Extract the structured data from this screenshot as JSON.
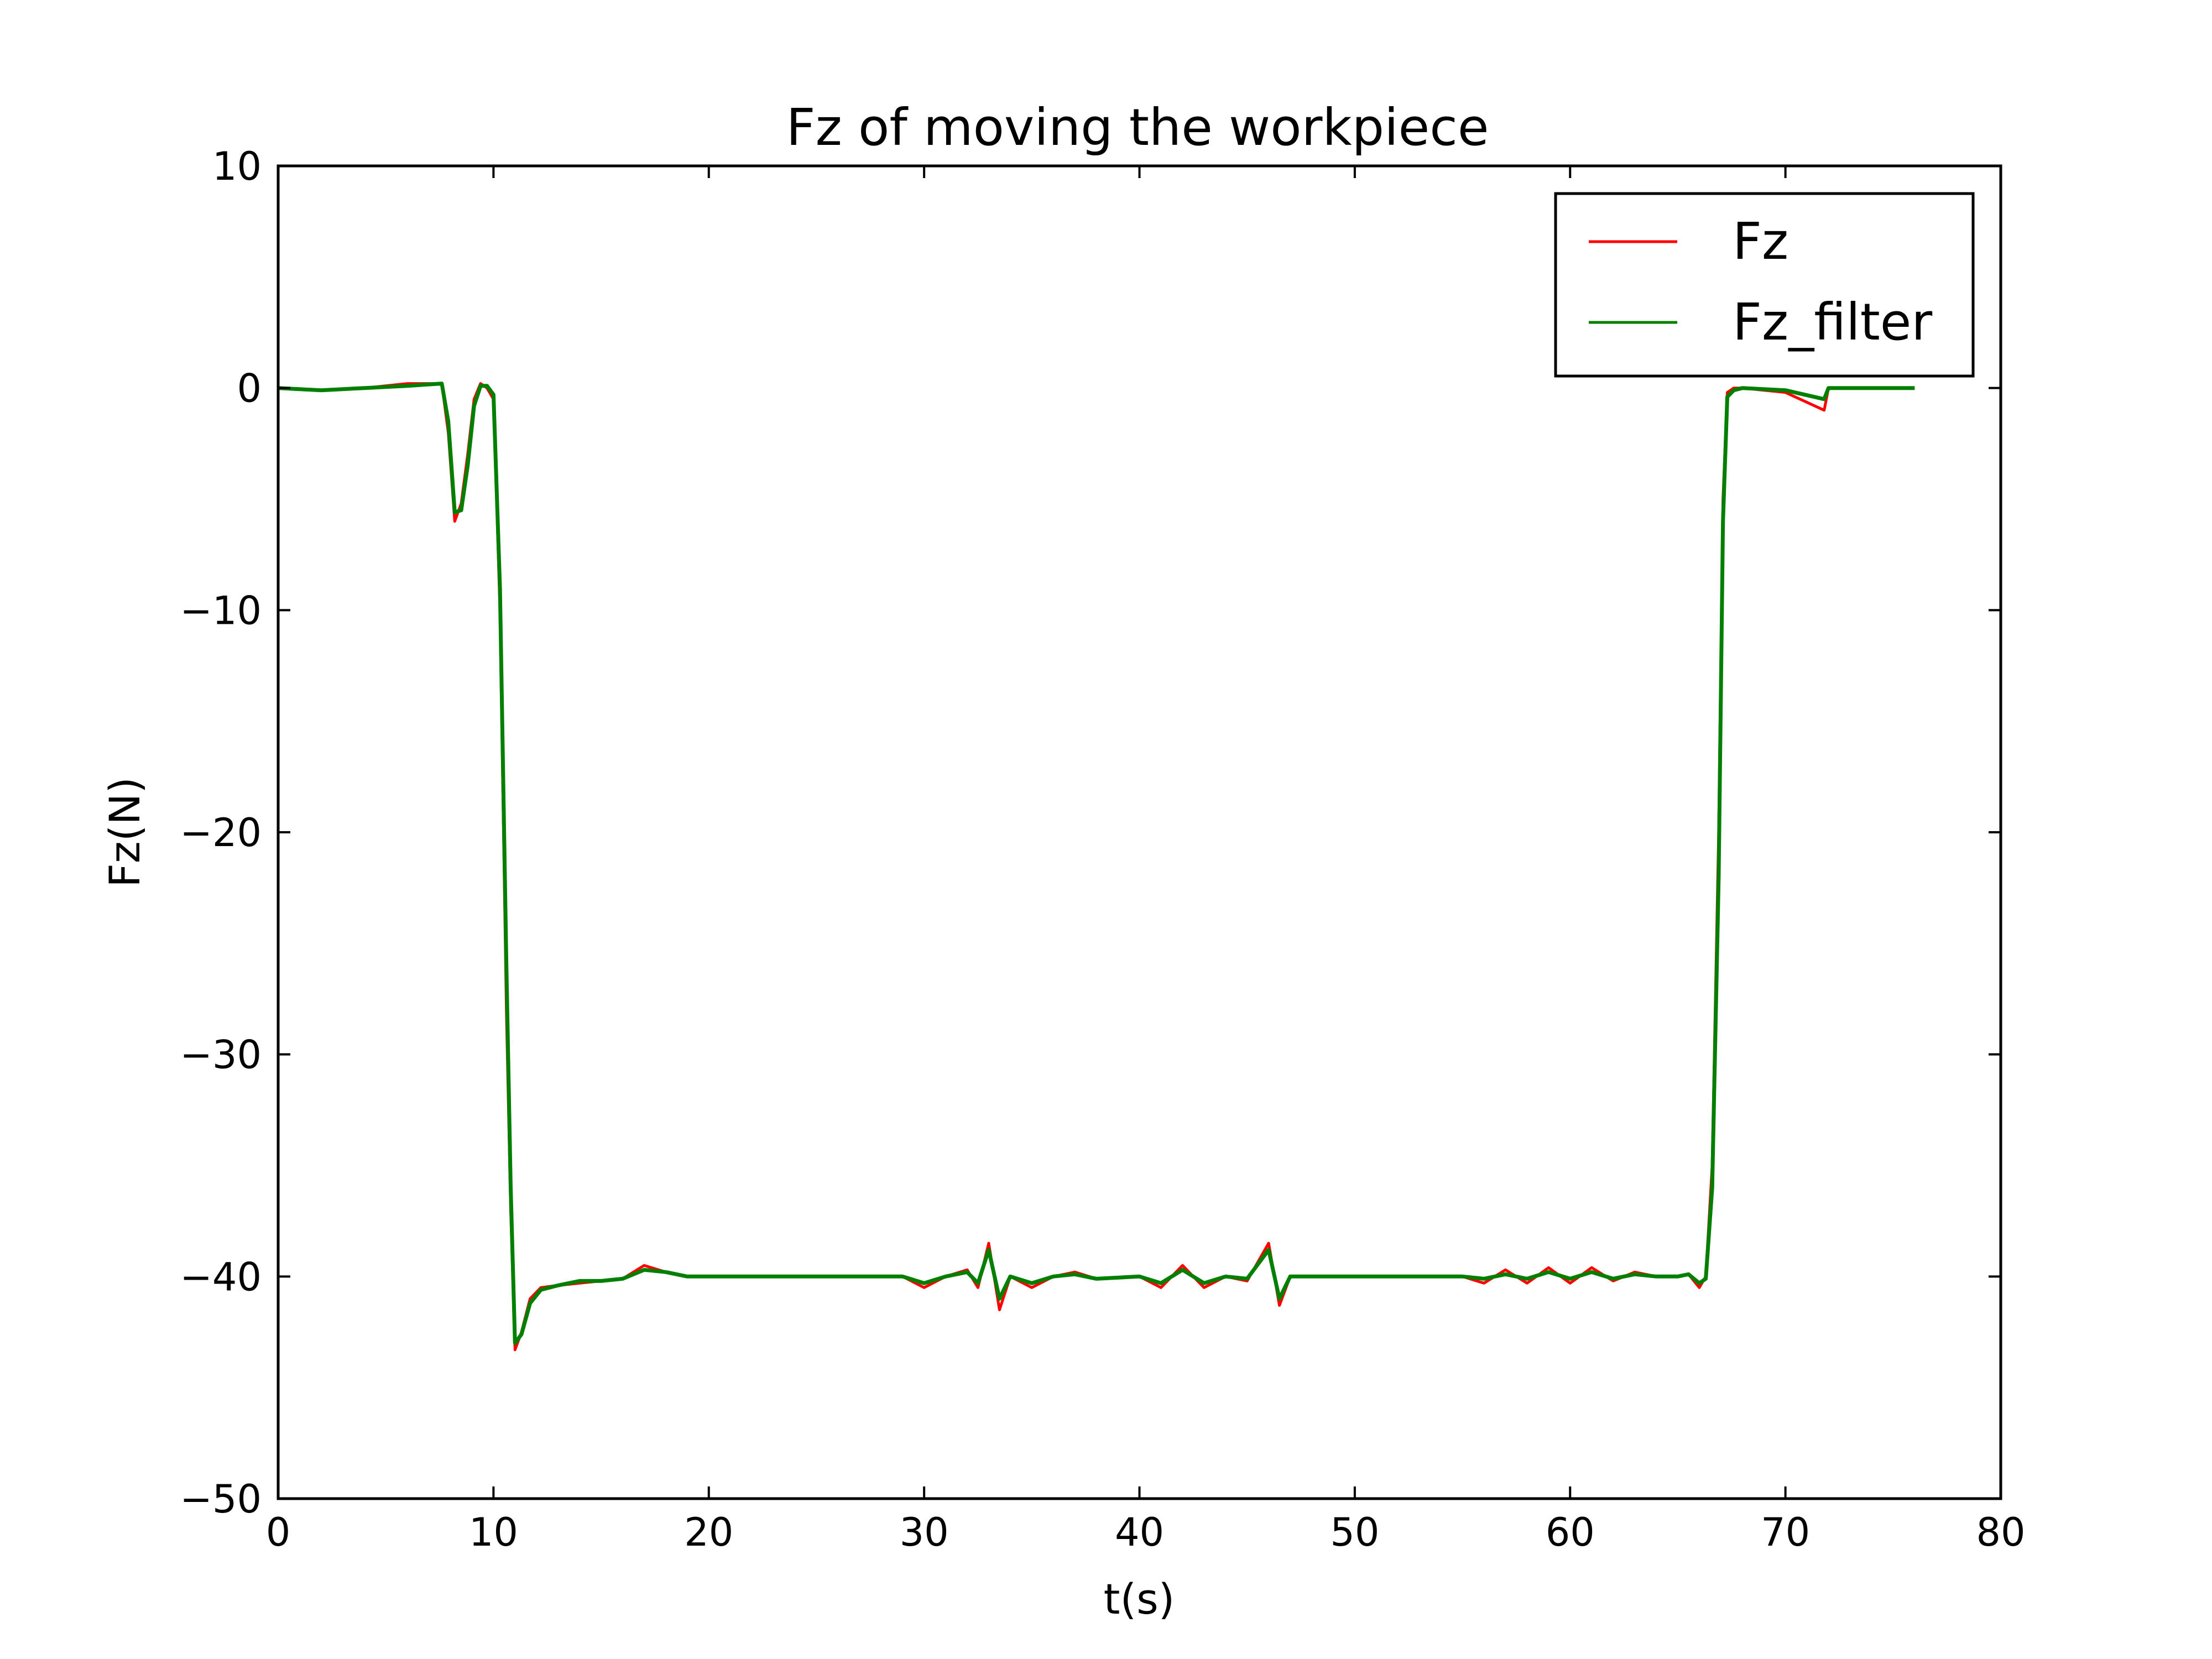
{
  "chart_data": {
    "type": "line",
    "title": "Fz of moving the workpiece",
    "xlabel": "t(s)",
    "ylabel": "Fz(N)",
    "xlim": [
      0,
      80
    ],
    "ylim": [
      -50,
      10
    ],
    "xticks": [
      0,
      10,
      20,
      30,
      40,
      50,
      60,
      70,
      80
    ],
    "yticks": [
      10,
      0,
      -10,
      -20,
      -30,
      -40,
      -50
    ],
    "xtick_labels": [
      "0",
      "10",
      "20",
      "30",
      "40",
      "50",
      "60",
      "70",
      "80"
    ],
    "ytick_labels": [
      "10",
      "0",
      "−10",
      "−20",
      "−30",
      "−40",
      "−50"
    ],
    "grid": false,
    "legend_position": "top-right",
    "series": [
      {
        "name": "Fz",
        "color": "#ff0000",
        "x": [
          0,
          2,
          4,
          6,
          7.6,
          7.9,
          8.2,
          8.5,
          8.8,
          9.1,
          9.4,
          9.7,
          10.0,
          10.3,
          10.6,
          10.8,
          11.0,
          11.3,
          11.7,
          12.2,
          13,
          14,
          15,
          16,
          17,
          18,
          19,
          20,
          22,
          25,
          28,
          29,
          30,
          31,
          32,
          32.5,
          33,
          33.5,
          34,
          35,
          36,
          37,
          38,
          40,
          41,
          42,
          43,
          44,
          45,
          46,
          46.5,
          47,
          48,
          50,
          52,
          55,
          56,
          57,
          58,
          59,
          60,
          61,
          62,
          63,
          64,
          65,
          65.5,
          66.0,
          66.3,
          66.6,
          66.9,
          67.1,
          67.3,
          67.6,
          68,
          70,
          71.8,
          72,
          74,
          76
        ],
        "y": [
          0,
          -0.1,
          0,
          0.2,
          0.2,
          -2,
          -6,
          -5.2,
          -3,
          -0.5,
          0.2,
          0,
          -0.5,
          -10,
          -28,
          -37,
          -43.3,
          -42.5,
          -41,
          -40.5,
          -40.4,
          -40.3,
          -40.2,
          -40.1,
          -39.5,
          -39.8,
          -40,
          -40,
          -40,
          -40,
          -40,
          -40,
          -40.5,
          -40,
          -39.7,
          -40.5,
          -38.5,
          -41.5,
          -40,
          -40.5,
          -40,
          -39.8,
          -40.1,
          -40,
          -40.5,
          -39.5,
          -40.5,
          -40,
          -40.2,
          -38.5,
          -41.3,
          -40,
          -40,
          -40,
          -40,
          -40,
          -40.3,
          -39.7,
          -40.3,
          -39.6,
          -40.3,
          -39.6,
          -40.2,
          -39.8,
          -40,
          -40,
          -39.9,
          -40.5,
          -40,
          -35,
          -20,
          -5,
          -0.2,
          0,
          0,
          -0.2,
          -1,
          0,
          0,
          0
        ]
      },
      {
        "name": "Fz_filter",
        "color": "#007f00",
        "x": [
          0,
          2,
          4,
          6,
          7.6,
          7.9,
          8.2,
          8.5,
          8.8,
          9.1,
          9.4,
          9.7,
          10.0,
          10.3,
          10.6,
          10.8,
          11.0,
          11.3,
          11.7,
          12.2,
          13,
          14,
          15,
          16,
          17,
          18,
          19,
          20,
          22,
          25,
          28,
          29,
          30,
          31,
          32,
          32.5,
          33,
          33.5,
          34,
          35,
          36,
          37,
          38,
          40,
          41,
          42,
          43,
          44,
          45,
          46,
          46.5,
          47,
          48,
          50,
          52,
          55,
          56,
          57,
          58,
          59,
          60,
          61,
          62,
          63,
          64,
          65,
          65.5,
          66.0,
          66.3,
          66.6,
          66.9,
          67.1,
          67.3,
          67.6,
          68,
          70,
          71.8,
          72,
          74,
          76
        ],
        "y": [
          0,
          -0.1,
          0,
          0.1,
          0.2,
          -1.5,
          -5.6,
          -5.5,
          -3.5,
          -0.8,
          0.1,
          0.1,
          -0.3,
          -9,
          -26,
          -36,
          -43,
          -42.6,
          -41.2,
          -40.6,
          -40.4,
          -40.2,
          -40.2,
          -40.1,
          -39.7,
          -39.8,
          -40,
          -40,
          -40,
          -40,
          -40,
          -40,
          -40.3,
          -40,
          -39.8,
          -40.3,
          -38.8,
          -41,
          -40,
          -40.3,
          -40,
          -39.9,
          -40.1,
          -40,
          -40.3,
          -39.7,
          -40.3,
          -40,
          -40.1,
          -38.8,
          -41,
          -40,
          -40,
          -40,
          -40,
          -40,
          -40.1,
          -39.9,
          -40.1,
          -39.8,
          -40.1,
          -39.8,
          -40.1,
          -39.9,
          -40,
          -40,
          -39.9,
          -40.3,
          -40.1,
          -36,
          -22,
          -6,
          -0.4,
          -0.1,
          0,
          -0.1,
          -0.5,
          0,
          0,
          0
        ]
      }
    ]
  }
}
